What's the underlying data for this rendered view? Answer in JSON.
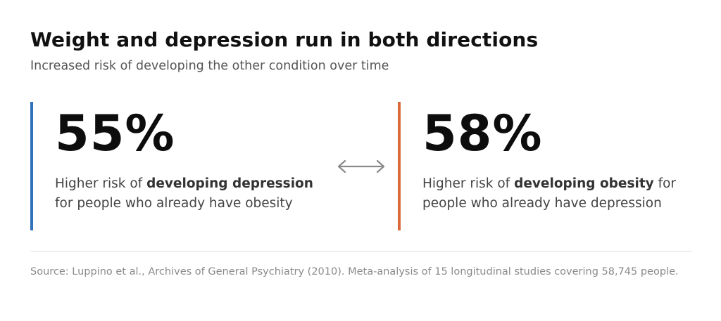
{
  "title": "Weight and depression run in both directions",
  "subtitle": "Increased risk of developing the other condition over time",
  "stats": [
    {
      "value": "55%",
      "desc_prefix": "Higher risk of ",
      "desc_bold": "developing depression",
      "desc_suffix": " for people who already have obesity",
      "accent": "#2f72b9"
    },
    {
      "value": "58%",
      "desc_prefix": "Higher risk of ",
      "desc_bold": "developing obesity",
      "desc_suffix": " for people who already have depression",
      "accent": "#d9693a"
    }
  ],
  "arrow_icon": "double-headed-arrow-icon",
  "source": "Source: Luppino et al., Archives of General Psychiatry (2010). Meta-analysis of 15 longitudinal studies covering 58,745 people."
}
